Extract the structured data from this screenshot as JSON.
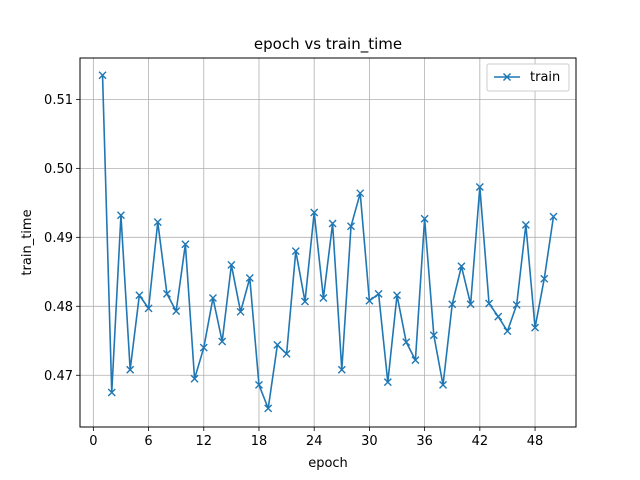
{
  "chart_data": {
    "type": "line",
    "title": "epoch vs train_time",
    "xlabel": "epoch",
    "ylabel": "train_time",
    "xlim": [
      -1.45,
      52.45
    ],
    "ylim": [
      0.4625,
      0.516
    ],
    "xticks": [
      0,
      6,
      12,
      18,
      24,
      30,
      36,
      42,
      48
    ],
    "xtick_labels": [
      "0",
      "6",
      "12",
      "18",
      "24",
      "30",
      "36",
      "42",
      "48"
    ],
    "yticks": [
      0.47,
      0.48,
      0.49,
      0.5,
      0.51
    ],
    "ytick_labels": [
      "0.47",
      "0.48",
      "0.49",
      "0.50",
      "0.51"
    ],
    "grid": true,
    "legend_position": "top-right",
    "colors": {
      "line": "#1f77b4",
      "grid": "#b0b0b0",
      "axis": "#000000"
    },
    "series": [
      {
        "name": "train",
        "marker": "x",
        "x": [
          1,
          2,
          3,
          4,
          5,
          6,
          7,
          8,
          9,
          10,
          11,
          12,
          13,
          14,
          15,
          16,
          17,
          18,
          19,
          20,
          21,
          22,
          23,
          24,
          25,
          26,
          27,
          28,
          29,
          30,
          31,
          32,
          33,
          34,
          35,
          36,
          37,
          38,
          39,
          40,
          41,
          42,
          43,
          44,
          45,
          46,
          47,
          48,
          49,
          50
        ],
        "values": [
          0.5135,
          0.4675,
          0.4932,
          0.4708,
          0.4816,
          0.4797,
          0.4922,
          0.4818,
          0.4793,
          0.489,
          0.4695,
          0.474,
          0.4812,
          0.4749,
          0.486,
          0.4792,
          0.4841,
          0.4686,
          0.4652,
          0.4744,
          0.4731,
          0.488,
          0.4807,
          0.4936,
          0.4812,
          0.492,
          0.4708,
          0.4916,
          0.4964,
          0.4808,
          0.4818,
          0.469,
          0.4816,
          0.4748,
          0.4722,
          0.4927,
          0.4758,
          0.4686,
          0.4803,
          0.4858,
          0.4803,
          0.4973,
          0.4804,
          0.4785,
          0.4764,
          0.4802,
          0.4918,
          0.4769,
          0.484,
          0.493
        ]
      }
    ]
  }
}
